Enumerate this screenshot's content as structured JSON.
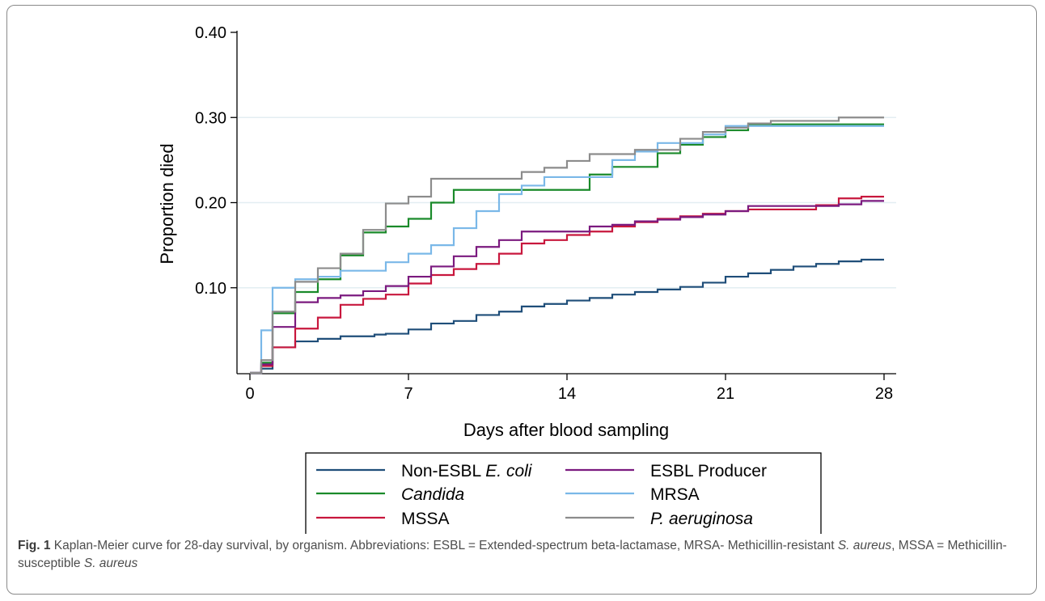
{
  "chart_data": {
    "type": "line",
    "subtype": "step",
    "xlabel": "Days after blood sampling",
    "ylabel": "Proportion died",
    "xlim": [
      0,
      28
    ],
    "ylim": [
      0,
      0.4
    ],
    "xticks": [
      0,
      7,
      14,
      21,
      28
    ],
    "xtick_labels": [
      "0",
      "7",
      "14",
      "21",
      "28"
    ],
    "yticks": [
      0.1,
      0.2,
      0.3,
      0.4
    ],
    "ytick_labels": [
      "0.10",
      "0.20",
      "0.30",
      "0.40"
    ],
    "grid": "horizontal",
    "legend_position": "bottom",
    "series": [
      {
        "name": "Non-ESBL ",
        "name_italic": "E. coli",
        "color": "#1f4e79",
        "points": [
          [
            0,
            0
          ],
          [
            0.5,
            0.005
          ],
          [
            1,
            0.03
          ],
          [
            2,
            0.037
          ],
          [
            3,
            0.04
          ],
          [
            4,
            0.043
          ],
          [
            5.5,
            0.045
          ],
          [
            6,
            0.046
          ],
          [
            7,
            0.051
          ],
          [
            8,
            0.058
          ],
          [
            9,
            0.061
          ],
          [
            10,
            0.068
          ],
          [
            11,
            0.072
          ],
          [
            12,
            0.078
          ],
          [
            13,
            0.081
          ],
          [
            14,
            0.085
          ],
          [
            15,
            0.088
          ],
          [
            16,
            0.092
          ],
          [
            17,
            0.095
          ],
          [
            18,
            0.098
          ],
          [
            19,
            0.101
          ],
          [
            20,
            0.106
          ],
          [
            21,
            0.113
          ],
          [
            22,
            0.117
          ],
          [
            23,
            0.121
          ],
          [
            24,
            0.125
          ],
          [
            25,
            0.128
          ],
          [
            26,
            0.131
          ],
          [
            27,
            0.133
          ]
        ],
        "end": [
          28,
          0.133
        ]
      },
      {
        "name": "",
        "name_italic": "Candida",
        "color": "#1a8a2a",
        "points": [
          [
            0,
            0
          ],
          [
            0.5,
            0.012
          ],
          [
            1,
            0.07
          ],
          [
            2,
            0.095
          ],
          [
            3,
            0.11
          ],
          [
            4,
            0.138
          ],
          [
            5,
            0.165
          ],
          [
            6,
            0.172
          ],
          [
            7,
            0.181
          ],
          [
            8,
            0.2
          ],
          [
            9,
            0.215
          ],
          [
            12,
            0.215
          ],
          [
            15,
            0.233
          ],
          [
            16,
            0.242
          ],
          [
            18,
            0.258
          ],
          [
            19,
            0.268
          ],
          [
            20,
            0.277
          ],
          [
            21,
            0.285
          ],
          [
            22,
            0.292
          ]
        ],
        "end": [
          28,
          0.292
        ]
      },
      {
        "name": "MSSA",
        "name_italic": "",
        "color": "#c8173d",
        "points": [
          [
            0,
            0
          ],
          [
            0.5,
            0.008
          ],
          [
            1,
            0.03
          ],
          [
            2,
            0.052
          ],
          [
            3,
            0.065
          ],
          [
            4,
            0.08
          ],
          [
            5,
            0.087
          ],
          [
            6,
            0.092
          ],
          [
            7,
            0.105
          ],
          [
            8,
            0.115
          ],
          [
            9,
            0.122
          ],
          [
            10,
            0.128
          ],
          [
            11,
            0.14
          ],
          [
            12,
            0.152
          ],
          [
            13,
            0.156
          ],
          [
            14,
            0.162
          ],
          [
            15,
            0.166
          ],
          [
            16,
            0.172
          ],
          [
            17,
            0.177
          ],
          [
            18,
            0.181
          ],
          [
            19,
            0.184
          ],
          [
            20,
            0.187
          ],
          [
            21,
            0.19
          ],
          [
            22,
            0.192
          ],
          [
            25,
            0.197
          ],
          [
            26,
            0.205
          ],
          [
            27,
            0.207
          ]
        ],
        "end": [
          28,
          0.207
        ]
      },
      {
        "name": "ESBL Producer",
        "name_italic": "",
        "color": "#7b1a7f",
        "points": [
          [
            0,
            0
          ],
          [
            0.5,
            0.01
          ],
          [
            1,
            0.054
          ],
          [
            2,
            0.083
          ],
          [
            3,
            0.088
          ],
          [
            4,
            0.091
          ],
          [
            5,
            0.096
          ],
          [
            6,
            0.102
          ],
          [
            7,
            0.113
          ],
          [
            8,
            0.125
          ],
          [
            9,
            0.137
          ],
          [
            10,
            0.148
          ],
          [
            11,
            0.156
          ],
          [
            12,
            0.166
          ],
          [
            15,
            0.172
          ],
          [
            16,
            0.174
          ],
          [
            17,
            0.178
          ],
          [
            18,
            0.18
          ],
          [
            19,
            0.183
          ],
          [
            20,
            0.186
          ],
          [
            21,
            0.19
          ],
          [
            22,
            0.196
          ],
          [
            26,
            0.198
          ],
          [
            27,
            0.202
          ]
        ],
        "end": [
          28,
          0.202
        ]
      },
      {
        "name": "MRSA",
        "name_italic": "",
        "color": "#7ab8e8",
        "points": [
          [
            0,
            0
          ],
          [
            0.5,
            0.05
          ],
          [
            1,
            0.1
          ],
          [
            2,
            0.11
          ],
          [
            3,
            0.113
          ],
          [
            4,
            0.12
          ],
          [
            6,
            0.13
          ],
          [
            7,
            0.14
          ],
          [
            8,
            0.15
          ],
          [
            9,
            0.17
          ],
          [
            10,
            0.19
          ],
          [
            11,
            0.21
          ],
          [
            12,
            0.22
          ],
          [
            13,
            0.23
          ],
          [
            15,
            0.23
          ],
          [
            16,
            0.25
          ],
          [
            17,
            0.26
          ],
          [
            18,
            0.27
          ],
          [
            20,
            0.28
          ],
          [
            21,
            0.29
          ]
        ],
        "end": [
          28,
          0.29
        ]
      },
      {
        "name": "",
        "name_italic": "P. aeruginosa",
        "color": "#8c8c8c",
        "points": [
          [
            0,
            0
          ],
          [
            0.5,
            0.015
          ],
          [
            1,
            0.072
          ],
          [
            2,
            0.107
          ],
          [
            3,
            0.123
          ],
          [
            4,
            0.14
          ],
          [
            5,
            0.168
          ],
          [
            6,
            0.199
          ],
          [
            7,
            0.207
          ],
          [
            8,
            0.228
          ],
          [
            12,
            0.236
          ],
          [
            13,
            0.241
          ],
          [
            14,
            0.249
          ],
          [
            15,
            0.257
          ],
          [
            17,
            0.262
          ],
          [
            19,
            0.275
          ],
          [
            20,
            0.283
          ],
          [
            21,
            0.288
          ],
          [
            22,
            0.293
          ],
          [
            23,
            0.296
          ],
          [
            26,
            0.3
          ]
        ],
        "end": [
          28,
          0.3
        ]
      }
    ]
  },
  "caption": {
    "label": "Fig. 1",
    "text_1": " Kaplan-Meier curve for 28-day survival, by organism. Abbreviations: ESBL = Extended-spectrum beta-lactamase, MRSA- Methicillin-resistant ",
    "italic_1": "S. aureus",
    "text_2": ", MSSA = Methicillin-susceptible ",
    "italic_2": "S. aureus"
  }
}
